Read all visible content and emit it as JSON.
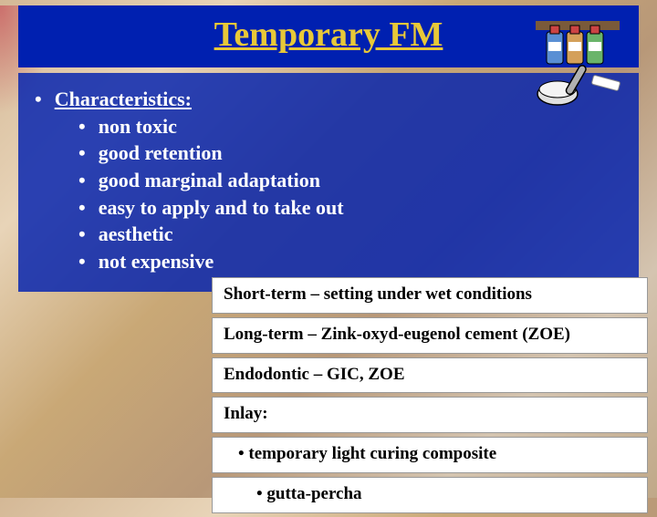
{
  "title": "Temporary FM",
  "title_color": "#e8c838",
  "title_bg": "#0020b0",
  "main_box_bg": "rgba(0,32,176,0.82)",
  "text_color": "#ffffff",
  "heading": "Characteristics:",
  "items": [
    "non toxic",
    "good retention",
    "good marginal adaptation",
    "easy to apply and to take out",
    "aesthetic",
    "not expensive"
  ],
  "right_items": [
    {
      "text": "Short-term – setting under wet conditions",
      "indent": 0
    },
    {
      "text": "Long-term – Zink-oxyd-eugenol cement (ZOE)",
      "indent": 0
    },
    {
      "text": "Endodontic – GIC, ZOE",
      "indent": 0
    },
    {
      "text": "Inlay:",
      "indent": 0
    },
    {
      "text": "• temporary light curing composite",
      "indent": 1
    },
    {
      "text": "• gutta-percha",
      "indent": 2
    }
  ],
  "icon_colors": {
    "shelf": "#7a5a3a",
    "bottle1": "#5a8fd4",
    "bottle2": "#d4a05a",
    "bottle3": "#6ab46a",
    "cap": "#cc4444",
    "pestle": "#b0b0b0",
    "mortar": "#e0e0e0"
  }
}
